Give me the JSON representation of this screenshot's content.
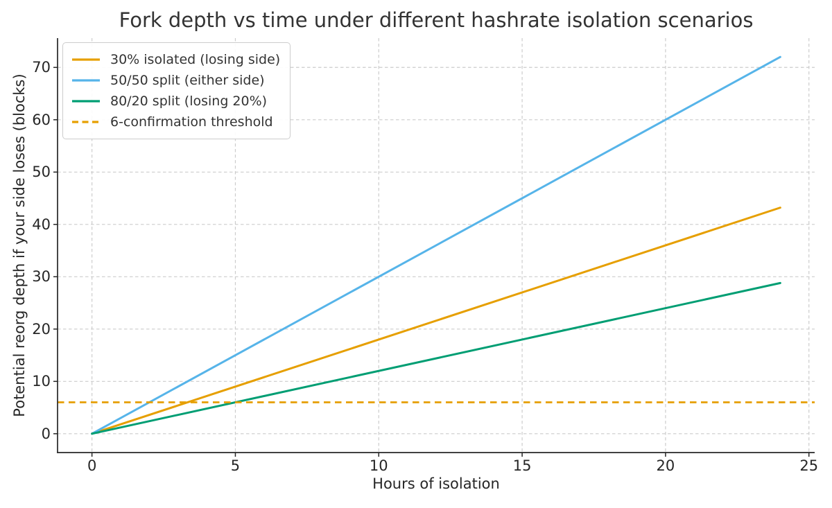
{
  "chart_data": {
    "type": "line",
    "title": "Fork depth vs time under different hashrate isolation scenarios",
    "xlabel": "Hours of isolation",
    "ylabel": "Potential reorg depth if your side loses (blocks)",
    "xlim": [
      -1.2,
      25.2
    ],
    "ylim": [
      -3.6,
      75.6
    ],
    "x_ticks": [
      0,
      5,
      10,
      15,
      20,
      25
    ],
    "y_ticks": [
      0,
      10,
      20,
      30,
      40,
      50,
      60,
      70
    ],
    "grid": {
      "on": true,
      "style": "dashed",
      "color": "#cccccc"
    },
    "series": [
      {
        "name": "30% isolated (losing side)",
        "color": "#E69F00",
        "style": "solid",
        "blocks_per_hour": 1.8,
        "x": [
          0,
          24
        ],
        "values": [
          0,
          43.2
        ]
      },
      {
        "name": "50/50 split (either side)",
        "color": "#56B4E9",
        "style": "solid",
        "blocks_per_hour": 3.0,
        "x": [
          0,
          24
        ],
        "values": [
          0,
          72
        ]
      },
      {
        "name": "80/20 split (losing 20%)",
        "color": "#009E73",
        "style": "solid",
        "blocks_per_hour": 1.2,
        "x": [
          0,
          24
        ],
        "values": [
          0,
          28.8
        ]
      }
    ],
    "threshold": {
      "label": "6-confirmation threshold",
      "value": 6,
      "color": "#E69F00",
      "style": "dashed"
    },
    "legend": {
      "position": "upper-left",
      "entries": [
        {
          "label": "30% isolated (losing side)",
          "color": "#E69F00",
          "line_style": "solid"
        },
        {
          "label": "50/50 split (either side)",
          "color": "#56B4E9",
          "line_style": "solid"
        },
        {
          "label": "80/20 split (losing 20%)",
          "color": "#009E73",
          "line_style": "solid"
        },
        {
          "label": "6-confirmation threshold",
          "color": "#E69F00",
          "line_style": "dashed"
        }
      ]
    }
  }
}
